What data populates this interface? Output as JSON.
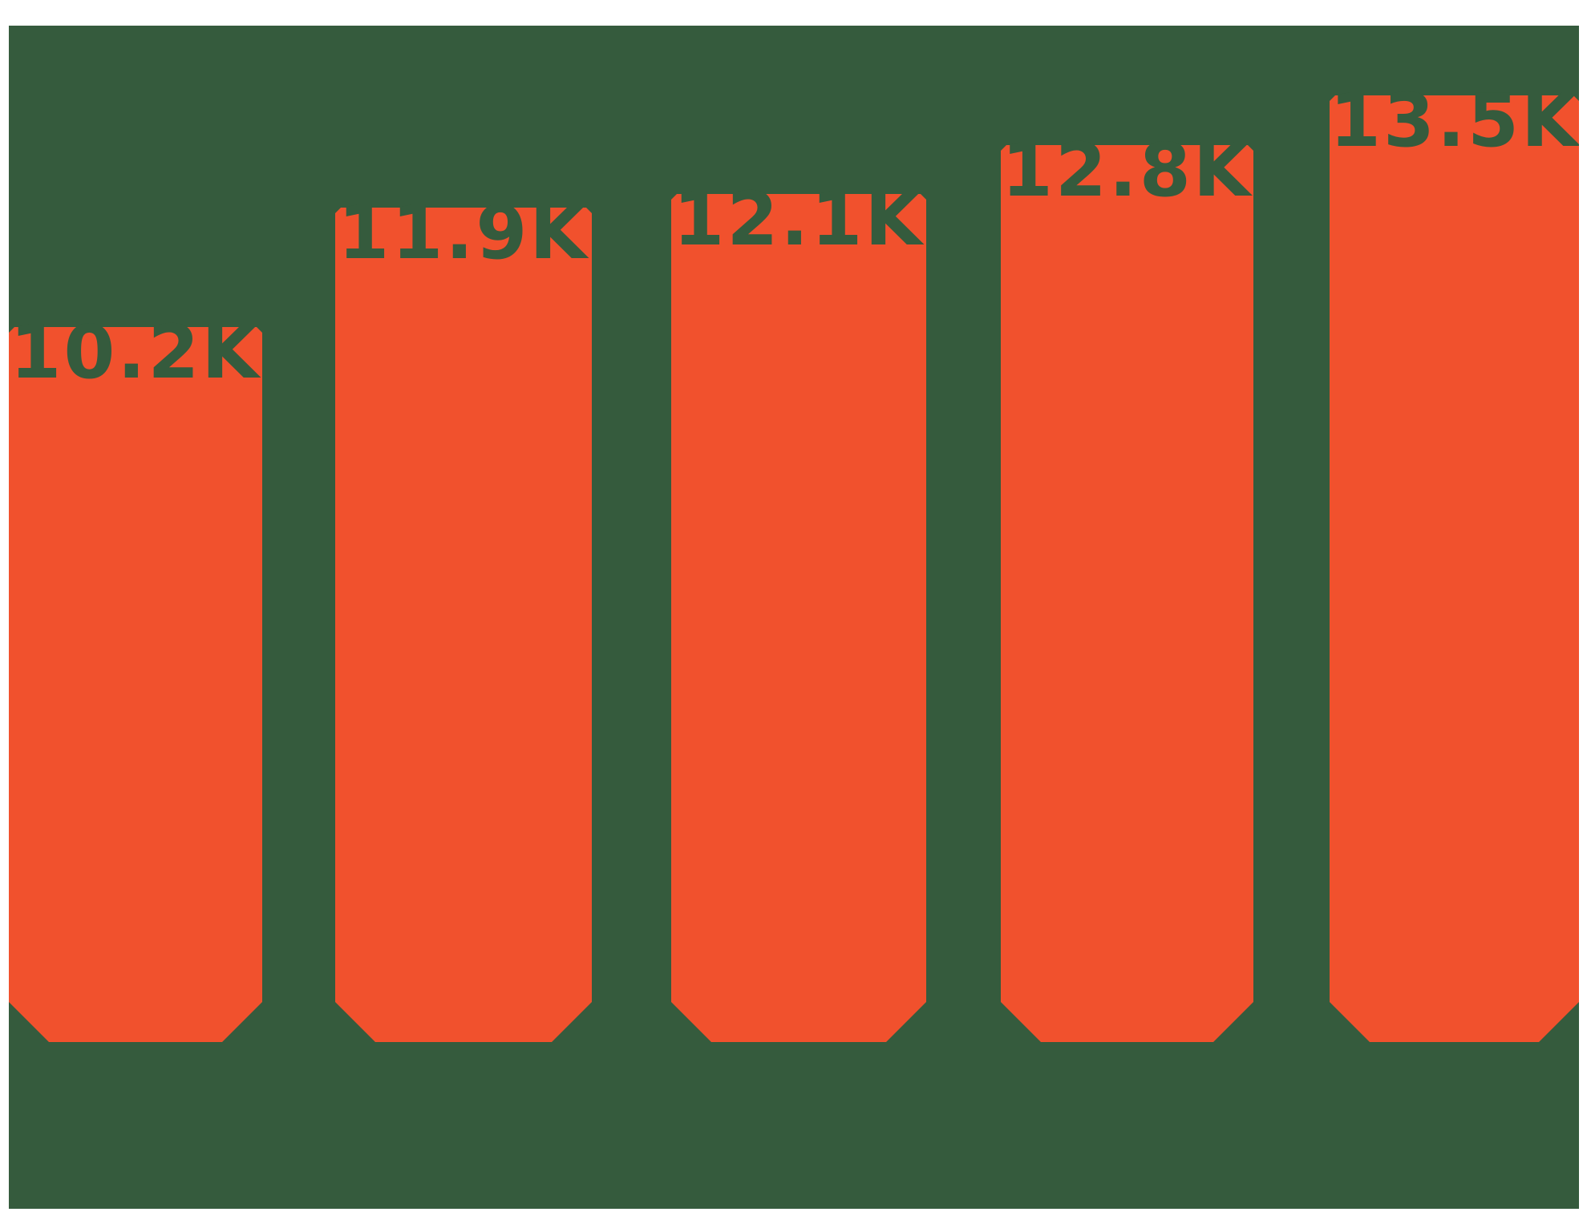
{
  "chart_data": {
    "type": "bar",
    "title": "",
    "categories": [
      "",
      "",
      "",
      "",
      ""
    ],
    "values": [
      10.2,
      11.9,
      12.1,
      12.8,
      13.5
    ],
    "unit": "K",
    "bar_labels": [
      "10.2K",
      "11.9K",
      "12.1K",
      "12.8K",
      "13.5K"
    ],
    "ylim": [
      0,
      14.5
    ],
    "grid": false,
    "legend": false,
    "axes_visible": false,
    "label_style": "value label in panel color overlapping bar top (visible only as notches)"
  },
  "colors": {
    "page_background": "#FFFFFF",
    "panel_background": "#355B3D",
    "bar_fill": "#F1512D",
    "label_text": "#355B3D"
  }
}
